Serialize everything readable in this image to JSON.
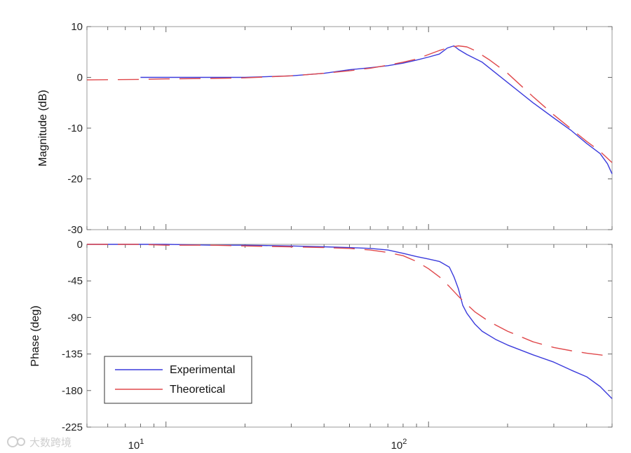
{
  "chart_data": [
    {
      "type": "line",
      "ylabel": "Magnitude (dB)",
      "xscale": "log",
      "xlim": [
        5,
        500
      ],
      "ylim": [
        -30,
        10
      ],
      "yticks": [
        10,
        0,
        -10,
        -20,
        -30
      ],
      "grid": false,
      "series": [
        {
          "name": "Experimental",
          "color": "#3b3bdc",
          "style": "solid",
          "x": [
            8,
            10,
            15,
            20,
            30,
            40,
            50,
            60,
            70,
            80,
            90,
            100,
            110,
            118,
            125,
            130,
            140,
            160,
            200,
            250,
            300,
            350,
            400,
            450,
            480,
            500
          ],
          "y": [
            0,
            0,
            0,
            0,
            0.3,
            0.8,
            1.5,
            1.9,
            2.3,
            2.8,
            3.4,
            4,
            4.6,
            5.8,
            6.2,
            5.5,
            4.5,
            3,
            -1,
            -5,
            -8,
            -10.5,
            -13,
            -15,
            -17,
            -19
          ]
        },
        {
          "name": "Theoretical",
          "color": "#e0484b",
          "style": "dashed",
          "x": [
            5,
            8,
            10,
            15,
            20,
            30,
            40,
            50,
            60,
            70,
            80,
            90,
            100,
            110,
            120,
            130,
            140,
            150,
            170,
            200,
            250,
            300,
            350,
            400,
            450,
            500
          ],
          "y": [
            -0.5,
            -0.4,
            -0.3,
            -0.2,
            -0.1,
            0.3,
            0.8,
            1.3,
            1.8,
            2.4,
            3,
            3.6,
            4.5,
            5.3,
            5.9,
            6.2,
            6,
            5.3,
            3.5,
            0.8,
            -3.8,
            -7.4,
            -10.2,
            -12.6,
            -14.6,
            -16.8
          ]
        }
      ]
    },
    {
      "type": "line",
      "xlabel": "",
      "ylabel": "Phase (deg)",
      "xscale": "log",
      "xlim": [
        5,
        500
      ],
      "ylim": [
        -225,
        0
      ],
      "yticks": [
        0,
        -45,
        -90,
        -135,
        -180,
        -225
      ],
      "xtick_labels": [
        {
          "base": "10",
          "exp": "1"
        },
        {
          "base": "10",
          "exp": "2"
        }
      ],
      "grid": false,
      "legend": {
        "position": "bottom-left"
      },
      "series": [
        {
          "name": "Experimental",
          "color": "#3b3bdc",
          "style": "solid",
          "x": [
            5,
            8,
            10,
            15,
            20,
            30,
            40,
            50,
            60,
            70,
            80,
            90,
            100,
            110,
            120,
            125,
            130,
            135,
            140,
            150,
            160,
            180,
            200,
            250,
            300,
            350,
            400,
            450,
            500
          ],
          "y": [
            0,
            0,
            0,
            -1,
            -1,
            -2,
            -3,
            -4,
            -5,
            -7,
            -11,
            -15,
            -18,
            -21,
            -28,
            -40,
            -55,
            -75,
            -85,
            -98,
            -107,
            -117,
            -124,
            -136,
            -145,
            -155,
            -163,
            -175,
            -190
          ]
        },
        {
          "name": "Theoretical",
          "color": "#e0484b",
          "style": "dashed",
          "x": [
            5,
            8,
            10,
            15,
            20,
            30,
            40,
            50,
            60,
            70,
            80,
            90,
            100,
            110,
            120,
            130,
            140,
            150,
            170,
            200,
            250,
            300,
            350,
            400,
            450,
            500
          ],
          "y": [
            0,
            0,
            -1,
            -1,
            -2,
            -3,
            -4,
            -5,
            -7,
            -10,
            -14,
            -21,
            -30,
            -40,
            -52,
            -64,
            -74,
            -83,
            -95,
            -107,
            -120,
            -127,
            -131,
            -134,
            -136,
            -138
          ]
        }
      ]
    }
  ],
  "watermark": {
    "text": "大数跨境",
    "icon": "watermark-logo-icon"
  }
}
